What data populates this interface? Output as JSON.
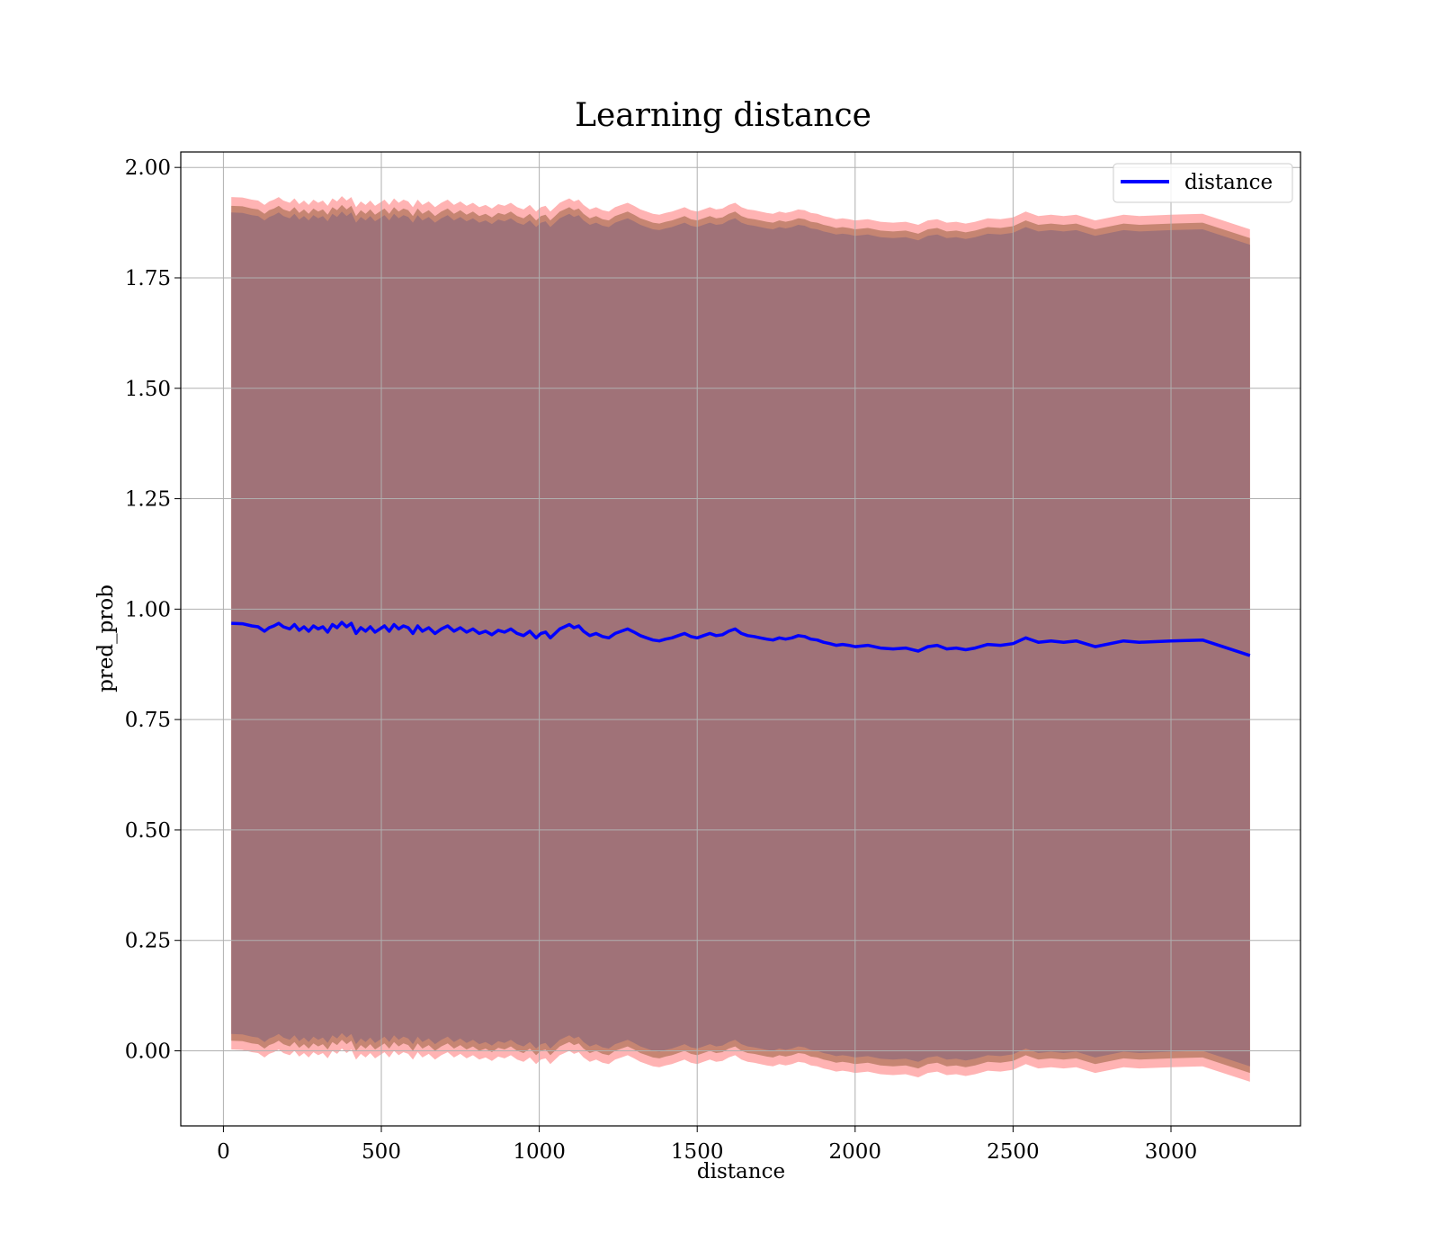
{
  "chart_data": {
    "type": "line",
    "title": "Learning distance",
    "xlabel": "distance",
    "ylabel": "pred_prob",
    "xlim": [
      -135,
      3410
    ],
    "ylim": [
      -0.17,
      2.035
    ],
    "xticks": [
      0,
      500,
      1000,
      1500,
      2000,
      2500,
      3000
    ],
    "yticks": [
      0.0,
      0.25,
      0.5,
      0.75,
      1.0,
      1.25,
      1.5,
      1.75,
      2.0
    ],
    "ytick_labels": [
      "0.00",
      "0.25",
      "0.50",
      "0.75",
      "1.00",
      "1.25",
      "1.50",
      "1.75",
      "2.00"
    ],
    "grid": true,
    "legend_position": "top-right",
    "colors": {
      "line": "#0000ff",
      "band_outer": "#ff9a9a",
      "band_mid": "#c0806a",
      "band_inner": "#a07278"
    },
    "series": [
      {
        "name": "distance",
        "x": [
          25,
          60,
          90,
          110,
          130,
          145,
          160,
          175,
          190,
          210,
          225,
          240,
          255,
          270,
          285,
          300,
          315,
          330,
          345,
          360,
          375,
          390,
          405,
          420,
          435,
          450,
          465,
          480,
          495,
          510,
          525,
          540,
          555,
          570,
          585,
          600,
          615,
          630,
          650,
          670,
          690,
          710,
          730,
          750,
          770,
          790,
          810,
          830,
          850,
          870,
          890,
          910,
          930,
          950,
          970,
          990,
          1005,
          1020,
          1035,
          1050,
          1065,
          1080,
          1095,
          1110,
          1125,
          1140,
          1160,
          1180,
          1200,
          1220,
          1240,
          1260,
          1280,
          1300,
          1320,
          1340,
          1360,
          1380,
          1400,
          1420,
          1440,
          1460,
          1480,
          1500,
          1520,
          1540,
          1560,
          1580,
          1600,
          1620,
          1640,
          1660,
          1680,
          1700,
          1720,
          1740,
          1760,
          1780,
          1800,
          1820,
          1840,
          1860,
          1880,
          1900,
          1920,
          1940,
          1960,
          1980,
          2000,
          2040,
          2080,
          2120,
          2160,
          2200,
          2230,
          2260,
          2290,
          2320,
          2350,
          2380,
          2420,
          2460,
          2500,
          2540,
          2580,
          2620,
          2660,
          2700,
          2760,
          2850,
          2900,
          3000,
          3100,
          3250
        ],
        "values": [
          0.968,
          0.967,
          0.962,
          0.96,
          0.95,
          0.958,
          0.962,
          0.968,
          0.96,
          0.955,
          0.965,
          0.952,
          0.96,
          0.95,
          0.962,
          0.955,
          0.96,
          0.948,
          0.965,
          0.958,
          0.97,
          0.96,
          0.968,
          0.945,
          0.958,
          0.95,
          0.96,
          0.948,
          0.955,
          0.962,
          0.95,
          0.965,
          0.955,
          0.962,
          0.958,
          0.945,
          0.962,
          0.95,
          0.958,
          0.945,
          0.955,
          0.962,
          0.95,
          0.958,
          0.948,
          0.955,
          0.945,
          0.95,
          0.942,
          0.952,
          0.948,
          0.955,
          0.945,
          0.94,
          0.95,
          0.935,
          0.945,
          0.948,
          0.935,
          0.945,
          0.955,
          0.96,
          0.965,
          0.958,
          0.962,
          0.95,
          0.94,
          0.945,
          0.938,
          0.935,
          0.945,
          0.95,
          0.955,
          0.948,
          0.94,
          0.935,
          0.93,
          0.928,
          0.932,
          0.935,
          0.94,
          0.945,
          0.938,
          0.935,
          0.94,
          0.945,
          0.94,
          0.942,
          0.95,
          0.955,
          0.945,
          0.94,
          0.938,
          0.935,
          0.932,
          0.93,
          0.935,
          0.932,
          0.935,
          0.94,
          0.938,
          0.932,
          0.93,
          0.925,
          0.922,
          0.918,
          0.92,
          0.918,
          0.915,
          0.918,
          0.912,
          0.91,
          0.912,
          0.905,
          0.915,
          0.918,
          0.91,
          0.912,
          0.908,
          0.912,
          0.92,
          0.918,
          0.922,
          0.935,
          0.925,
          0.928,
          0.925,
          0.928,
          0.915,
          0.928,
          0.925,
          0.928,
          0.93,
          0.895
        ]
      }
    ]
  }
}
